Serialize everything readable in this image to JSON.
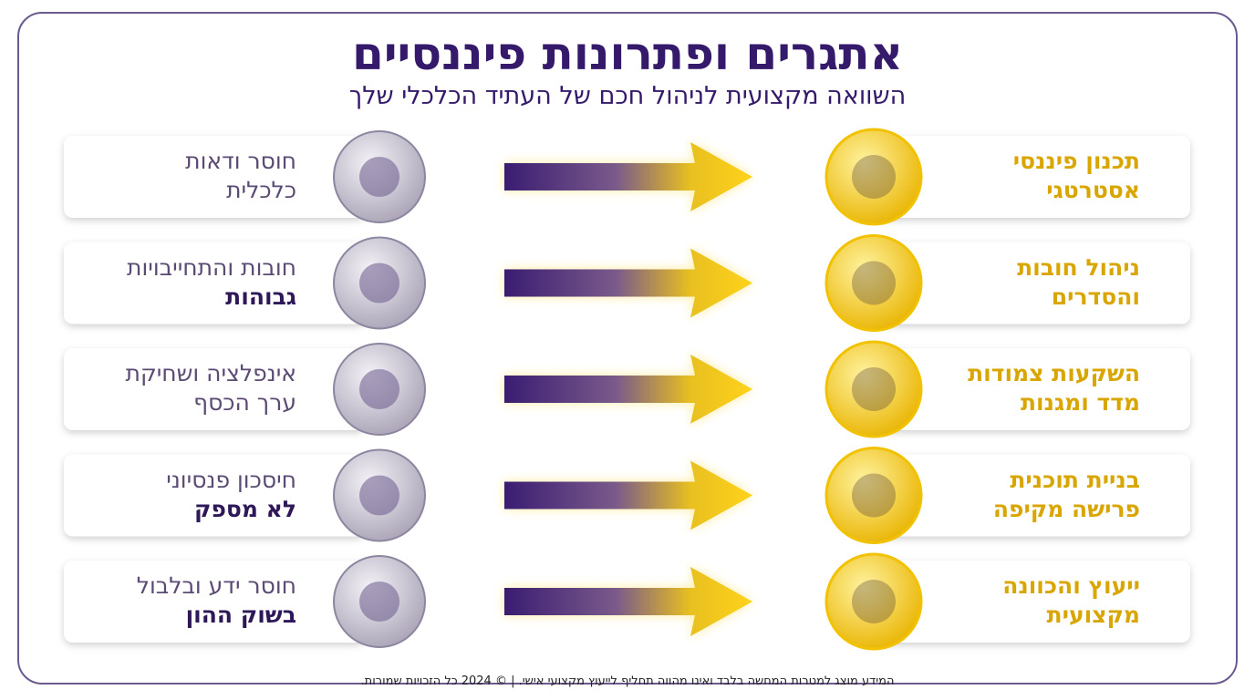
{
  "header": {
    "title": "אתגרים ופתרונות פיננסיים",
    "subtitle": "השוואה מקצועית לניהול חכם של העתיד הכלכלי שלך"
  },
  "rows": [
    {
      "challenge": {
        "line1": "חוסר ודאות",
        "line2": "כלכלית",
        "bold_line2": false
      },
      "solution": {
        "line1": "תכנון פיננסי",
        "line2": "אסטרטגי"
      }
    },
    {
      "challenge": {
        "line1": "חובות והתחייבויות",
        "line2": "גבוהות",
        "bold_line2": true
      },
      "solution": {
        "line1": "ניהול חובות",
        "line2": "והסדרים"
      }
    },
    {
      "challenge": {
        "line1": "אינפלציה ושחיקת",
        "line2": "ערך הכסף",
        "bold_line2": false
      },
      "solution": {
        "line1": "השקעות צמודות",
        "line2": "מדד ומגנות"
      }
    },
    {
      "challenge": {
        "line1": "חיסכון פנסיוני",
        "line2": "לא מספק",
        "bold_line2": true
      },
      "solution": {
        "line1": "בניית תוכנית",
        "line2": "פרישה מקיפה"
      }
    },
    {
      "challenge": {
        "line1": "חוסר ידע ובלבול",
        "line2": "בשוק ההון",
        "bold_line2": true
      },
      "solution": {
        "line1": "ייעוץ והכוונה",
        "line2": "מקצועית"
      }
    }
  ],
  "footer": "המידע מוצג למטרות המחשה בלבד ואינו מהווה תחליף לייעוץ מקצועי אישי. | © 2024 כל הזכויות שמורות."
}
